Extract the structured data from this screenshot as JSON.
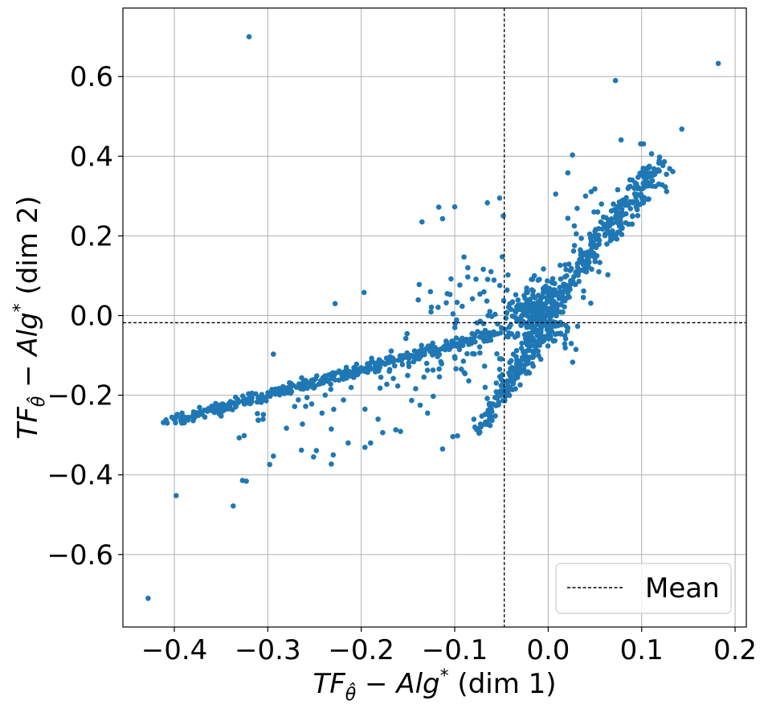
{
  "chart_data": {
    "type": "scatter",
    "title": "",
    "xlabel": {
      "pre": "TF",
      "sub": "θ̂",
      "mid": " − Alg",
      "sup": "*",
      "post": " (dim 1)"
    },
    "ylabel": {
      "pre": "TF",
      "sub": "θ̂",
      "mid": " − Alg",
      "sup": "*",
      "post": " (dim 2)"
    },
    "xlim": [
      -0.455,
      0.212
    ],
    "ylim": [
      -0.782,
      0.772
    ],
    "xticks": [
      -0.4,
      -0.3,
      -0.2,
      -0.1,
      0.0,
      0.1,
      0.2
    ],
    "xtick_labels": [
      "−0.4",
      "−0.3",
      "−0.2",
      "−0.1",
      "0.0",
      "0.1",
      "0.2"
    ],
    "yticks": [
      -0.6,
      -0.4,
      -0.2,
      0.0,
      0.2,
      0.4,
      0.6
    ],
    "ytick_labels": [
      "−0.6",
      "−0.4",
      "−0.2",
      "0.0",
      "0.2",
      "0.4",
      "0.6"
    ],
    "grid": true,
    "color": "#1f77b4",
    "mean": {
      "x": -0.047,
      "y": -0.018,
      "line_color": "#000000"
    },
    "legend": {
      "position": "lower-right",
      "entries": [
        {
          "label": "Mean",
          "style": "dashed-line"
        }
      ]
    },
    "series": [
      {
        "name": "outliers",
        "points": [
          [
            -0.32,
            0.7
          ],
          [
            0.182,
            0.633
          ],
          [
            0.072,
            0.59
          ],
          [
            -0.428,
            -0.71
          ],
          [
            -0.398,
            -0.452
          ],
          [
            -0.337,
            -0.478
          ],
          [
            0.143,
            0.468
          ],
          [
            0.078,
            0.441
          ],
          [
            0.099,
            0.431
          ],
          [
            0.102,
            0.431
          ],
          [
            0.026,
            0.403
          ],
          [
            0.021,
            0.358
          ],
          [
            -0.052,
            0.295
          ],
          [
            -0.065,
            0.283
          ],
          [
            -0.048,
            0.25
          ],
          [
            -0.1,
            0.273
          ],
          [
            -0.117,
            0.272
          ],
          [
            -0.113,
            0.243
          ],
          [
            -0.135,
            0.235
          ],
          [
            0.031,
            0.269
          ],
          [
            0.05,
            0.318
          ],
          [
            0.053,
            0.26
          ],
          [
            0.03,
            0.205
          ],
          [
            -0.197,
            0.058
          ],
          [
            -0.228,
            0.03
          ],
          [
            -0.138,
            0.078
          ],
          [
            -0.126,
            0.06
          ],
          [
            -0.109,
            0.032
          ],
          [
            -0.294,
            -0.097
          ],
          [
            -0.258,
            -0.206
          ],
          [
            -0.219,
            -0.212
          ],
          [
            -0.196,
            -0.235
          ],
          [
            -0.253,
            -0.222
          ],
          [
            -0.31,
            -0.263
          ],
          [
            -0.305,
            -0.26
          ],
          [
            -0.196,
            -0.331
          ],
          [
            -0.163,
            -0.287
          ],
          [
            -0.158,
            -0.291
          ],
          [
            -0.251,
            -0.355
          ],
          [
            -0.23,
            -0.35
          ],
          [
            -0.264,
            -0.338
          ],
          [
            -0.232,
            -0.373
          ],
          [
            -0.214,
            -0.32
          ],
          [
            -0.19,
            -0.32
          ],
          [
            -0.182,
            -0.26
          ],
          [
            -0.113,
            -0.335
          ],
          [
            -0.129,
            -0.245
          ],
          [
            -0.137,
            -0.225
          ],
          [
            -0.123,
            -0.203
          ],
          [
            -0.102,
            -0.304
          ],
          [
            -0.097,
            -0.302
          ],
          [
            -0.085,
            -0.164
          ],
          [
            -0.068,
            -0.127
          ],
          [
            -0.052,
            -0.135
          ],
          [
            -0.058,
            0.089
          ],
          [
            -0.043,
            0.102
          ],
          [
            -0.044,
            0.064
          ],
          [
            -0.073,
            0.054
          ],
          [
            -0.081,
            0.042
          ],
          [
            -0.092,
            0.023
          ],
          [
            -0.098,
            -0.011
          ],
          [
            -0.105,
            0.053
          ],
          [
            -0.09,
            0.147
          ],
          [
            -0.086,
            0.12
          ],
          [
            -0.086,
            0.097
          ],
          [
            -0.104,
            0.092
          ],
          [
            -0.144,
            -0.116
          ],
          [
            -0.149,
            -0.128
          ],
          [
            -0.156,
            -0.123
          ],
          [
            -0.17,
            -0.14
          ],
          [
            -0.179,
            -0.155
          ],
          [
            -0.28,
            -0.283
          ],
          [
            -0.242,
            -0.245
          ],
          [
            -0.323,
            -0.416
          ],
          [
            -0.327,
            -0.414
          ],
          [
            -0.298,
            -0.374
          ],
          [
            -0.294,
            -0.353
          ],
          [
            -0.248,
            -0.339
          ],
          [
            -0.232,
            -0.285
          ],
          [
            -0.177,
            -0.294
          ],
          [
            0.008,
            0.305
          ],
          [
            0.046,
            0.311
          ],
          [
            0.04,
            0.3
          ],
          [
            0.028,
            0.225
          ],
          [
            0.021,
            0.244
          ],
          [
            0.057,
            0.28
          ],
          [
            0.049,
            0.26
          ]
        ]
      },
      {
        "name": "arm-lower-left",
        "segment": {
          "from": [
            -0.41,
            -0.27
          ],
          "to": [
            -0.06,
            -0.045
          ],
          "n": 380,
          "spread": 0.007,
          "seed": 11
        }
      },
      {
        "name": "arm-lower-left-faint",
        "segment": {
          "from": [
            -0.31,
            -0.245
          ],
          "to": [
            -0.08,
            -0.08
          ],
          "n": 55,
          "spread": 0.03,
          "seed": 23
        }
      },
      {
        "name": "arm-lower-branch",
        "segment": {
          "from": [
            -0.074,
            -0.285
          ],
          "to": [
            -0.005,
            -0.04
          ],
          "n": 170,
          "spread": 0.009,
          "seed": 37
        }
      },
      {
        "name": "arm-upper-right",
        "segment": {
          "from": [
            -0.01,
            0.0
          ],
          "to": [
            0.122,
            0.382
          ],
          "n": 330,
          "spread": 0.014,
          "seed": 53
        }
      },
      {
        "name": "core",
        "cluster": {
          "center": [
            -0.01,
            0.0
          ],
          "sx": 0.018,
          "sy": 0.04,
          "n": 240,
          "seed": 71
        }
      },
      {
        "name": "scatter-mid",
        "cluster": {
          "center": [
            -0.07,
            -0.02
          ],
          "sx": 0.04,
          "sy": 0.07,
          "n": 70,
          "seed": 97
        }
      }
    ]
  }
}
